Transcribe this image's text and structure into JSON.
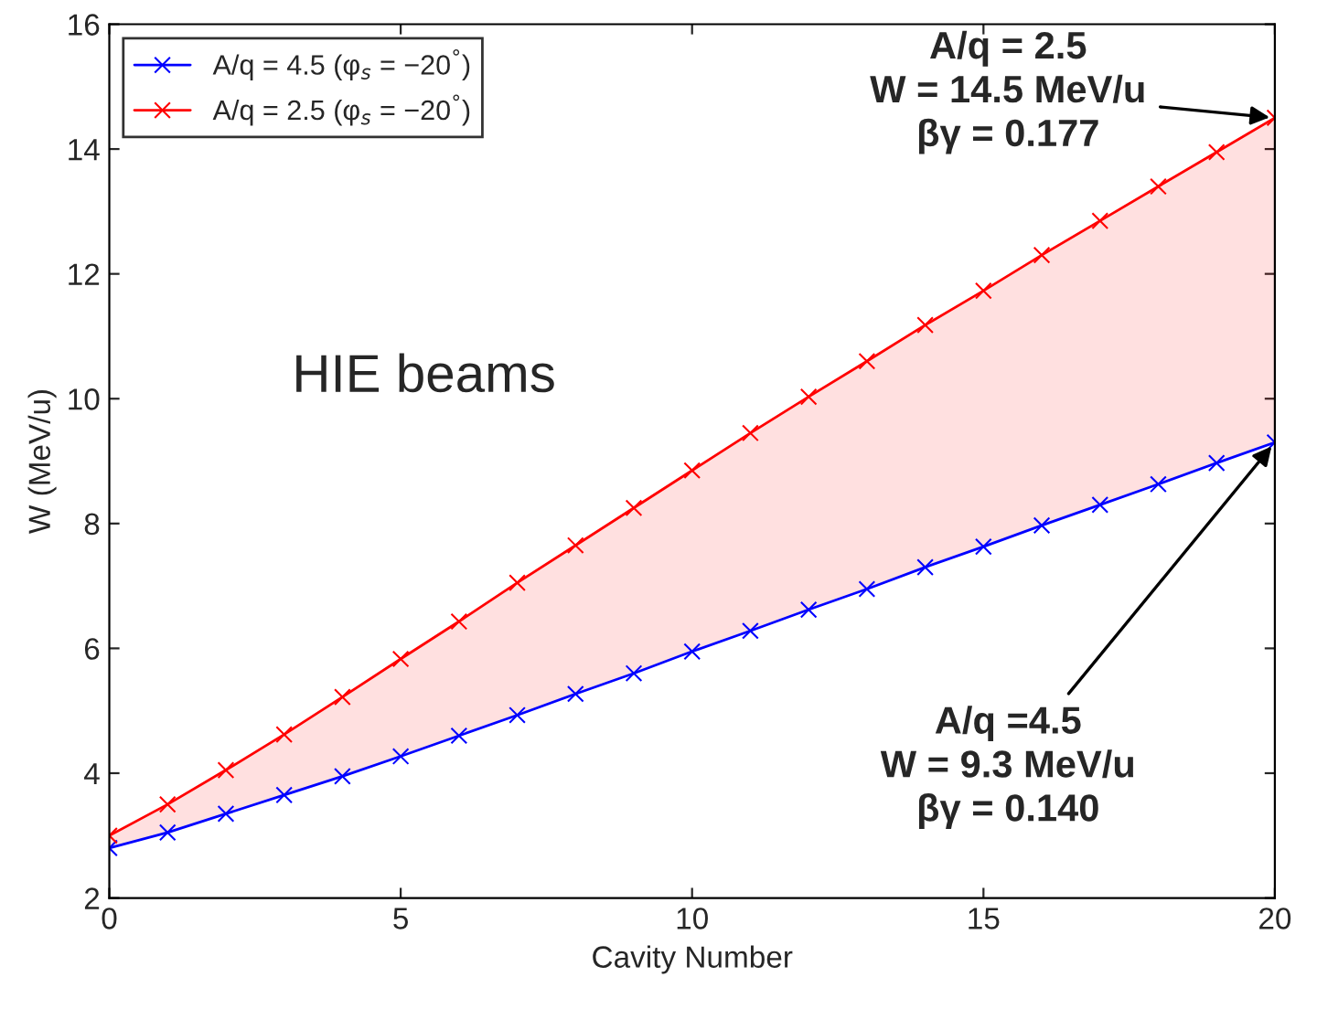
{
  "chart_data": {
    "type": "line",
    "xlabel": "Cavity Number",
    "ylabel": "W (MeV/u)",
    "x": [
      0,
      1,
      2,
      3,
      4,
      5,
      6,
      7,
      8,
      9,
      10,
      11,
      12,
      13,
      14,
      15,
      16,
      17,
      18,
      19,
      20
    ],
    "series": [
      {
        "name": "A/q = 4.5 (φ$_{s}$ = −20$^{°}$)",
        "color": "#0000ff",
        "values": [
          2.8,
          3.05,
          3.35,
          3.65,
          3.95,
          4.27,
          4.6,
          4.93,
          5.27,
          5.6,
          5.95,
          6.28,
          6.62,
          6.95,
          7.3,
          7.63,
          7.97,
          8.3,
          8.63,
          8.97,
          9.3
        ]
      },
      {
        "name": "A/q = 2.5 (φ$_{s}$ = −20$^{°}$)",
        "color": "#ff0000",
        "values": [
          3.0,
          3.5,
          4.05,
          4.62,
          5.22,
          5.83,
          6.43,
          7.05,
          7.65,
          8.25,
          8.85,
          9.45,
          10.03,
          10.6,
          11.18,
          11.73,
          12.3,
          12.85,
          13.4,
          13.95,
          14.5
        ],
        "lower": [
          2.8,
          3.05,
          3.35,
          3.65,
          3.95,
          4.27,
          4.6,
          4.93,
          5.27,
          5.6,
          5.95,
          6.28,
          6.62,
          6.95,
          7.3,
          7.63,
          7.97,
          8.3,
          8.63,
          8.97,
          9.3
        ],
        "upper": [
          3.0,
          3.5,
          4.05,
          4.62,
          5.22,
          5.83,
          6.43,
          7.05,
          7.65,
          8.25,
          8.85,
          9.45,
          10.03,
          10.6,
          11.18,
          11.73,
          12.3,
          12.85,
          13.4,
          13.95,
          14.5
        ]
      }
    ],
    "annotations": [
      "HIE beams",
      {
        "text": "A/q = 2.5\nW = 14.5 MeV/u\nβγ = 0.177",
        "x": 20,
        "y": 14.5
      },
      {
        "text": "A/q =4.5\nW = 9.3 MeV/u\nβγ = 0.140",
        "x": 20,
        "y": 9.3
      }
    ],
    "xlim": [
      0,
      20
    ],
    "ylim": [
      2,
      16
    ],
    "xticks": [
      0,
      5,
      10,
      15,
      20
    ],
    "yticks": [
      2,
      4,
      6,
      8,
      10,
      12,
      14,
      16
    ],
    "marker": "cross",
    "line_style": "solid",
    "legend": "top left",
    "grid": false
  }
}
